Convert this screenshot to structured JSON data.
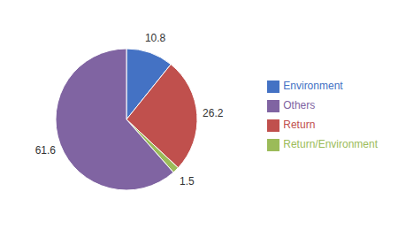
{
  "chart_data": {
    "type": "pie",
    "categories": [
      "Environment",
      "Return",
      "Return/Environment",
      "Others"
    ],
    "values": [
      10.8,
      26.2,
      1.5,
      61.6
    ],
    "colors": [
      "#4472C4",
      "#C0504D",
      "#9BBB59",
      "#8064A2"
    ],
    "data_labels": true,
    "legend": "right"
  }
}
